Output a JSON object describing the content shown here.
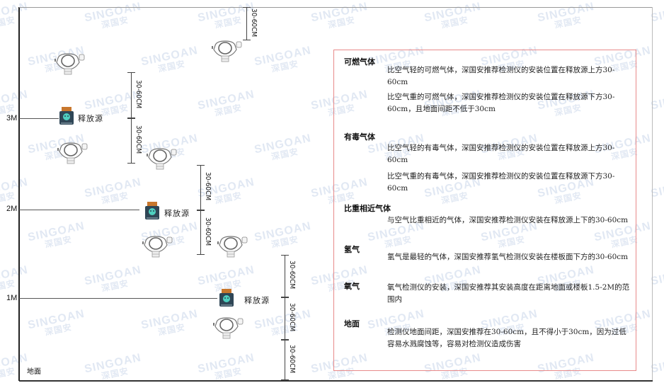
{
  "watermark": {
    "brand": "SINGOAN",
    "cn": "深国安"
  },
  "levels": [
    "3M",
    "2M",
    "1M"
  ],
  "floor_label": "地面",
  "source_label": "释放源",
  "dimension_label": "30-60CM",
  "colors": {
    "box_border": "#e88a8a",
    "source_body": "#2f4656",
    "source_lid": "#c8772d",
    "source_face": "#4fd0c0"
  },
  "panel": {
    "sections": [
      {
        "heading": "可燃气体",
        "items": [
          "比空气轻的可燃气体，深国安推荐检测仪的安装位置在释放源上方30-60cm",
          "比空气重的可燃气体，深国安推荐检测仪的安装位置在释放源下方30-60cm，且地面间距不低于30cm"
        ]
      },
      {
        "heading": "有毒气体",
        "items": [
          "比空气轻的有毒气体，深国安推荐检测仪的安装位置在释放源上方30-60cm",
          "比空气重的有毒气体，深国安推荐检测仪的安装位置在释放源下方30-60cm"
        ]
      },
      {
        "heading": "比重相近气体",
        "items": [
          "与空气比重相近的气体，深国安推荐检测仪安装在释放源上下的30-60cm"
        ]
      },
      {
        "heading": "氢气",
        "items": [
          "氢气是最轻的气体，深国安推荐氢气检测仪安装在楼板面下方的30-60cm"
        ]
      },
      {
        "heading": "氧气",
        "items": [
          "氧气检测仪的安装，深国安推荐其安装高度在距离地面或楼板1.5-2M的范围内"
        ]
      },
      {
        "heading": "地面",
        "items": [
          "检测仪地面间距，深国安推荐在30-60cm，且不得小于30cm，因为过低容易水溅腐蚀等，容易对检测仪造成伤害"
        ]
      }
    ]
  }
}
